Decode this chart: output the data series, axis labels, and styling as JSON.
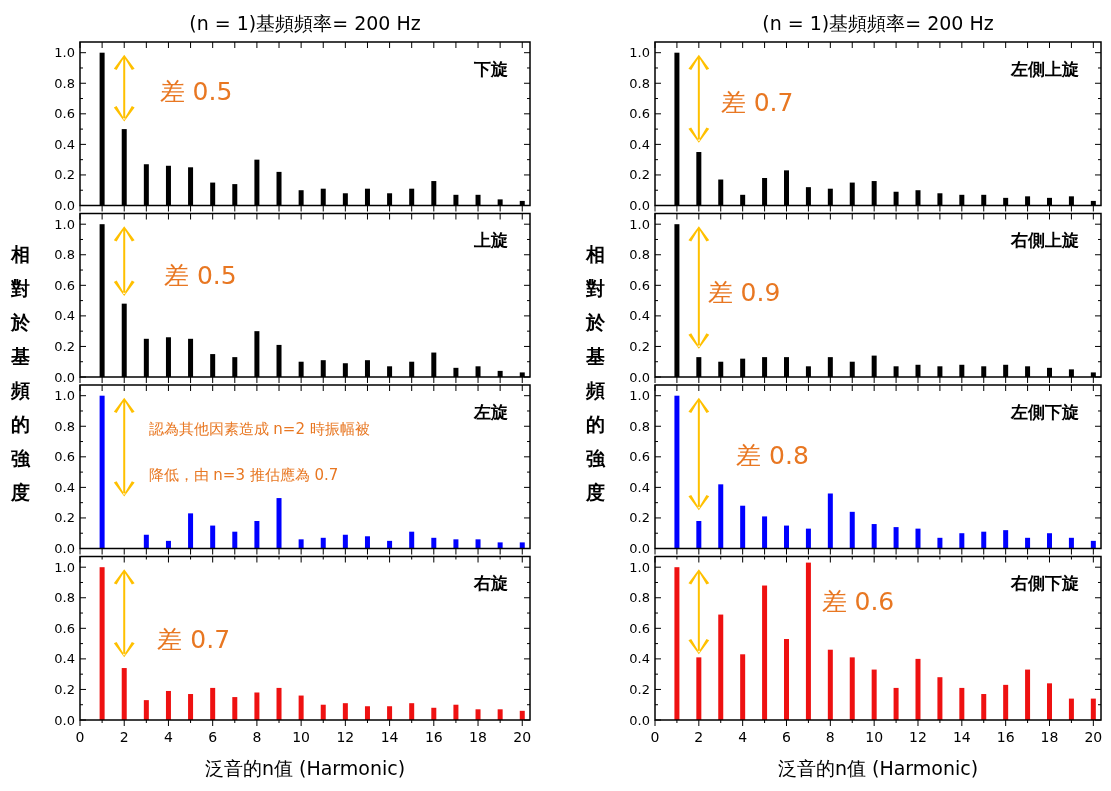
{
  "chart_data": [
    {
      "type": "bar",
      "title": "(n = 1)基頻頻率= 200 Hz",
      "x": [
        1,
        2,
        3,
        4,
        5,
        6,
        7,
        8,
        9,
        10,
        11,
        12,
        13,
        14,
        15,
        16,
        17,
        18,
        19,
        20
      ],
      "values": [
        1.0,
        0.5,
        0.27,
        0.26,
        0.25,
        0.15,
        0.14,
        0.3,
        0.22,
        0.1,
        0.11,
        0.08,
        0.11,
        0.08,
        0.11,
        0.16,
        0.07,
        0.07,
        0.04,
        0.03
      ],
      "color": "#000000",
      "xlim": [
        0,
        20.35
      ],
      "ylim": [
        0,
        1.07
      ],
      "xticks": [
        {
          "value": 0,
          "label": null
        },
        {
          "value": 1,
          "label": null
        },
        {
          "value": 2,
          "label": null
        },
        {
          "value": 3,
          "label": null
        },
        {
          "value": 4,
          "label": null
        },
        {
          "value": 5,
          "label": null
        },
        {
          "value": 6,
          "label": null
        },
        {
          "value": 7,
          "label": null
        },
        {
          "value": 8,
          "label": null
        },
        {
          "value": 9,
          "label": null
        },
        {
          "value": 10,
          "label": null
        },
        {
          "value": 11,
          "label": null
        },
        {
          "value": 12,
          "label": null
        },
        {
          "value": 13,
          "label": null
        },
        {
          "value": 14,
          "label": null
        },
        {
          "value": 15,
          "label": null
        },
        {
          "value": 16,
          "label": null
        },
        {
          "value": 17,
          "label": null
        },
        {
          "value": 18,
          "label": null
        },
        {
          "value": 19,
          "label": null
        },
        {
          "value": 20,
          "label": null
        }
      ],
      "yticks": [
        {
          "value": 0,
          "label": "0.0"
        },
        {
          "value": 0.1,
          "label": null
        },
        {
          "value": 0.2,
          "label": "0.2"
        },
        {
          "value": 0.3,
          "label": null
        },
        {
          "value": 0.4,
          "label": "0.4"
        },
        {
          "value": 0.5,
          "label": null
        },
        {
          "value": 0.6,
          "label": "0.6"
        },
        {
          "value": 0.7,
          "label": null
        },
        {
          "value": 0.8,
          "label": "0.8"
        },
        {
          "value": 0.9,
          "label": null
        },
        {
          "value": 1,
          "label": "1.0"
        }
      ],
      "tick_labels": "y",
      "annotations": [
        "下旋",
        "差 0.5"
      ]
    },
    {
      "type": "bar",
      "title": "(n = 1)基頻頻率= 200 Hz",
      "x": [
        1,
        2,
        3,
        4,
        5,
        6,
        7,
        8,
        9,
        10,
        11,
        12,
        13,
        14,
        15,
        16,
        17,
        18,
        19,
        20
      ],
      "values": [
        1.0,
        0.35,
        0.17,
        0.07,
        0.18,
        0.23,
        0.12,
        0.11,
        0.15,
        0.16,
        0.09,
        0.1,
        0.08,
        0.07,
        0.07,
        0.05,
        0.06,
        0.05,
        0.06,
        0.03
      ],
      "color": "#000000",
      "xlim": [
        0,
        20.35
      ],
      "ylim": [
        0,
        1.07
      ],
      "xticks": [
        {
          "value": 0,
          "label": null
        },
        {
          "value": 1,
          "label": null
        },
        {
          "value": 2,
          "label": null
        },
        {
          "value": 3,
          "label": null
        },
        {
          "value": 4,
          "label": null
        },
        {
          "value": 5,
          "label": null
        },
        {
          "value": 6,
          "label": null
        },
        {
          "value": 7,
          "label": null
        },
        {
          "value": 8,
          "label": null
        },
        {
          "value": 9,
          "label": null
        },
        {
          "value": 10,
          "label": null
        },
        {
          "value": 11,
          "label": null
        },
        {
          "value": 12,
          "label": null
        },
        {
          "value": 13,
          "label": null
        },
        {
          "value": 14,
          "label": null
        },
        {
          "value": 15,
          "label": null
        },
        {
          "value": 16,
          "label": null
        },
        {
          "value": 17,
          "label": null
        },
        {
          "value": 18,
          "label": null
        },
        {
          "value": 19,
          "label": null
        },
        {
          "value": 20,
          "label": null
        }
      ],
      "yticks": [
        {
          "value": 0,
          "label": "0.0"
        },
        {
          "value": 0.1,
          "label": null
        },
        {
          "value": 0.2,
          "label": "0.2"
        },
        {
          "value": 0.3,
          "label": null
        },
        {
          "value": 0.4,
          "label": "0.4"
        },
        {
          "value": 0.5,
          "label": null
        },
        {
          "value": 0.6,
          "label": "0.6"
        },
        {
          "value": 0.7,
          "label": null
        },
        {
          "value": 0.8,
          "label": "0.8"
        },
        {
          "value": 0.9,
          "label": null
        },
        {
          "value": 1,
          "label": "1.0"
        }
      ],
      "tick_labels": "y",
      "annotations": [
        "左側上旋",
        "差 0.7"
      ]
    },
    {
      "type": "bar",
      "ylabel": "相對於基頻的強度",
      "x": [
        1,
        2,
        3,
        4,
        5,
        6,
        7,
        8,
        9,
        10,
        11,
        12,
        13,
        14,
        15,
        16,
        17,
        18,
        19,
        20
      ],
      "values": [
        1.0,
        0.48,
        0.25,
        0.26,
        0.25,
        0.15,
        0.13,
        0.3,
        0.21,
        0.1,
        0.11,
        0.09,
        0.11,
        0.07,
        0.1,
        0.16,
        0.06,
        0.07,
        0.04,
        0.03
      ],
      "color": "#000000",
      "xlim": [
        0,
        20.35
      ],
      "ylim": [
        0,
        1.07
      ],
      "xticks": [
        {
          "value": 0,
          "label": null
        },
        {
          "value": 1,
          "label": null
        },
        {
          "value": 2,
          "label": null
        },
        {
          "value": 3,
          "label": null
        },
        {
          "value": 4,
          "label": null
        },
        {
          "value": 5,
          "label": null
        },
        {
          "value": 6,
          "label": null
        },
        {
          "value": 7,
          "label": null
        },
        {
          "value": 8,
          "label": null
        },
        {
          "value": 9,
          "label": null
        },
        {
          "value": 10,
          "label": null
        },
        {
          "value": 11,
          "label": null
        },
        {
          "value": 12,
          "label": null
        },
        {
          "value": 13,
          "label": null
        },
        {
          "value": 14,
          "label": null
        },
        {
          "value": 15,
          "label": null
        },
        {
          "value": 16,
          "label": null
        },
        {
          "value": 17,
          "label": null
        },
        {
          "value": 18,
          "label": null
        },
        {
          "value": 19,
          "label": null
        },
        {
          "value": 20,
          "label": null
        }
      ],
      "yticks": [
        {
          "value": 0,
          "label": "0.0"
        },
        {
          "value": 0.1,
          "label": null
        },
        {
          "value": 0.2,
          "label": "0.2"
        },
        {
          "value": 0.3,
          "label": null
        },
        {
          "value": 0.4,
          "label": "0.4"
        },
        {
          "value": 0.5,
          "label": null
        },
        {
          "value": 0.6,
          "label": "0.6"
        },
        {
          "value": 0.7,
          "label": null
        },
        {
          "value": 0.8,
          "label": "0.8"
        },
        {
          "value": 0.9,
          "label": null
        },
        {
          "value": 1,
          "label": "1.0"
        }
      ],
      "tick_labels": "y",
      "annotations": [
        "上旋",
        "差 0.5"
      ]
    },
    {
      "type": "bar",
      "ylabel": "相對於基頻的強度",
      "x": [
        1,
        2,
        3,
        4,
        5,
        6,
        7,
        8,
        9,
        10,
        11,
        12,
        13,
        14,
        15,
        16,
        17,
        18,
        19,
        20
      ],
      "values": [
        1.0,
        0.13,
        0.1,
        0.12,
        0.13,
        0.13,
        0.07,
        0.13,
        0.1,
        0.14,
        0.07,
        0.08,
        0.07,
        0.08,
        0.07,
        0.08,
        0.07,
        0.06,
        0.05,
        0.03
      ],
      "color": "#000000",
      "xlim": [
        0,
        20.35
      ],
      "ylim": [
        0,
        1.07
      ],
      "xticks": [
        {
          "value": 0,
          "label": null
        },
        {
          "value": 1,
          "label": null
        },
        {
          "value": 2,
          "label": null
        },
        {
          "value": 3,
          "label": null
        },
        {
          "value": 4,
          "label": null
        },
        {
          "value": 5,
          "label": null
        },
        {
          "value": 6,
          "label": null
        },
        {
          "value": 7,
          "label": null
        },
        {
          "value": 8,
          "label": null
        },
        {
          "value": 9,
          "label": null
        },
        {
          "value": 10,
          "label": null
        },
        {
          "value": 11,
          "label": null
        },
        {
          "value": 12,
          "label": null
        },
        {
          "value": 13,
          "label": null
        },
        {
          "value": 14,
          "label": null
        },
        {
          "value": 15,
          "label": null
        },
        {
          "value": 16,
          "label": null
        },
        {
          "value": 17,
          "label": null
        },
        {
          "value": 18,
          "label": null
        },
        {
          "value": 19,
          "label": null
        },
        {
          "value": 20,
          "label": null
        }
      ],
      "yticks": [
        {
          "value": 0,
          "label": "0.0"
        },
        {
          "value": 0.1,
          "label": null
        },
        {
          "value": 0.2,
          "label": "0.2"
        },
        {
          "value": 0.3,
          "label": null
        },
        {
          "value": 0.4,
          "label": "0.4"
        },
        {
          "value": 0.5,
          "label": null
        },
        {
          "value": 0.6,
          "label": "0.6"
        },
        {
          "value": 0.7,
          "label": null
        },
        {
          "value": 0.8,
          "label": "0.8"
        },
        {
          "value": 0.9,
          "label": null
        },
        {
          "value": 1,
          "label": "1.0"
        }
      ],
      "tick_labels": "y",
      "annotations": [
        "右側上旋",
        "差 0.9"
      ]
    },
    {
      "type": "bar",
      "x": [
        1,
        2,
        3,
        4,
        5,
        6,
        7,
        8,
        9,
        10,
        11,
        12,
        13,
        14,
        15,
        16,
        17,
        18,
        19,
        20
      ],
      "values": [
        1.0,
        0,
        0.09,
        0.05,
        0.23,
        0.15,
        0.11,
        0.18,
        0.33,
        0.06,
        0.07,
        0.09,
        0.08,
        0.05,
        0.11,
        0.07,
        0.06,
        0.06,
        0.04,
        0.04
      ],
      "color": "#0000ff",
      "xlim": [
        0,
        20.35
      ],
      "ylim": [
        0,
        1.07
      ],
      "xticks": [
        {
          "value": 0,
          "label": null
        },
        {
          "value": 1,
          "label": null
        },
        {
          "value": 2,
          "label": null
        },
        {
          "value": 3,
          "label": null
        },
        {
          "value": 4,
          "label": null
        },
        {
          "value": 5,
          "label": null
        },
        {
          "value": 6,
          "label": null
        },
        {
          "value": 7,
          "label": null
        },
        {
          "value": 8,
          "label": null
        },
        {
          "value": 9,
          "label": null
        },
        {
          "value": 10,
          "label": null
        },
        {
          "value": 11,
          "label": null
        },
        {
          "value": 12,
          "label": null
        },
        {
          "value": 13,
          "label": null
        },
        {
          "value": 14,
          "label": null
        },
        {
          "value": 15,
          "label": null
        },
        {
          "value": 16,
          "label": null
        },
        {
          "value": 17,
          "label": null
        },
        {
          "value": 18,
          "label": null
        },
        {
          "value": 19,
          "label": null
        },
        {
          "value": 20,
          "label": null
        }
      ],
      "yticks": [
        {
          "value": 0,
          "label": "0.0"
        },
        {
          "value": 0.1,
          "label": null
        },
        {
          "value": 0.2,
          "label": "0.2"
        },
        {
          "value": 0.3,
          "label": null
        },
        {
          "value": 0.4,
          "label": "0.4"
        },
        {
          "value": 0.5,
          "label": null
        },
        {
          "value": 0.6,
          "label": "0.6"
        },
        {
          "value": 0.7,
          "label": null
        },
        {
          "value": 0.8,
          "label": "0.8"
        },
        {
          "value": 0.9,
          "label": null
        },
        {
          "value": 1,
          "label": "1.0"
        }
      ],
      "tick_labels": "y",
      "annotations": [
        "左旋",
        "認為其他因素造成 n=2 時振幅被降低，由 n=3 推估應為 0.7"
      ]
    },
    {
      "type": "bar",
      "x": [
        1,
        2,
        3,
        4,
        5,
        6,
        7,
        8,
        9,
        10,
        11,
        12,
        13,
        14,
        15,
        16,
        17,
        18,
        19,
        20
      ],
      "values": [
        1.0,
        0.18,
        0.42,
        0.28,
        0.21,
        0.15,
        0.13,
        0.36,
        0.24,
        0.16,
        0.14,
        0.13,
        0.07,
        0.1,
        0.11,
        0.12,
        0.07,
        0.1,
        0.07,
        0.05
      ],
      "color": "#0000ff",
      "xlim": [
        0,
        20.35
      ],
      "ylim": [
        0,
        1.07
      ],
      "xticks": [
        {
          "value": 0,
          "label": null
        },
        {
          "value": 1,
          "label": null
        },
        {
          "value": 2,
          "label": null
        },
        {
          "value": 3,
          "label": null
        },
        {
          "value": 4,
          "label": null
        },
        {
          "value": 5,
          "label": null
        },
        {
          "value": 6,
          "label": null
        },
        {
          "value": 7,
          "label": null
        },
        {
          "value": 8,
          "label": null
        },
        {
          "value": 9,
          "label": null
        },
        {
          "value": 10,
          "label": null
        },
        {
          "value": 11,
          "label": null
        },
        {
          "value": 12,
          "label": null
        },
        {
          "value": 13,
          "label": null
        },
        {
          "value": 14,
          "label": null
        },
        {
          "value": 15,
          "label": null
        },
        {
          "value": 16,
          "label": null
        },
        {
          "value": 17,
          "label": null
        },
        {
          "value": 18,
          "label": null
        },
        {
          "value": 19,
          "label": null
        },
        {
          "value": 20,
          "label": null
        }
      ],
      "yticks": [
        {
          "value": 0,
          "label": "0.0"
        },
        {
          "value": 0.1,
          "label": null
        },
        {
          "value": 0.2,
          "label": "0.2"
        },
        {
          "value": 0.3,
          "label": null
        },
        {
          "value": 0.4,
          "label": "0.4"
        },
        {
          "value": 0.5,
          "label": null
        },
        {
          "value": 0.6,
          "label": "0.6"
        },
        {
          "value": 0.7,
          "label": null
        },
        {
          "value": 0.8,
          "label": "0.8"
        },
        {
          "value": 0.9,
          "label": null
        },
        {
          "value": 1,
          "label": "1.0"
        }
      ],
      "tick_labels": "y",
      "annotations": [
        "左側下旋",
        "差 0.8"
      ]
    },
    {
      "type": "bar",
      "xlabel": "泛音的n值 (Harmonic)",
      "x": [
        1,
        2,
        3,
        4,
        5,
        6,
        7,
        8,
        9,
        10,
        11,
        12,
        13,
        14,
        15,
        16,
        17,
        18,
        19,
        20
      ],
      "values": [
        1.0,
        0.34,
        0.13,
        0.19,
        0.17,
        0.21,
        0.15,
        0.18,
        0.21,
        0.16,
        0.1,
        0.11,
        0.09,
        0.09,
        0.11,
        0.08,
        0.1,
        0.07,
        0.07,
        0.06
      ],
      "color": "#ee1111",
      "xlim": [
        0,
        20.35
      ],
      "ylim": [
        0,
        1.07
      ],
      "xticks": [
        0,
        {
          "value": 1,
          "label": null
        },
        2,
        {
          "value": 3,
          "label": null
        },
        4,
        {
          "value": 5,
          "label": null
        },
        6,
        {
          "value": 7,
          "label": null
        },
        8,
        {
          "value": 9,
          "label": null
        },
        10,
        {
          "value": 11,
          "label": null
        },
        12,
        {
          "value": 13,
          "label": null
        },
        14,
        {
          "value": 15,
          "label": null
        },
        16,
        {
          "value": 17,
          "label": null
        },
        18,
        {
          "value": 19,
          "label": null
        },
        20
      ],
      "yticks": [
        {
          "value": 0,
          "label": "0.0"
        },
        {
          "value": 0.1,
          "label": null
        },
        {
          "value": 0.2,
          "label": "0.2"
        },
        {
          "value": 0.3,
          "label": null
        },
        {
          "value": 0.4,
          "label": "0.4"
        },
        {
          "value": 0.5,
          "label": null
        },
        {
          "value": 0.6,
          "label": "0.6"
        },
        {
          "value": 0.7,
          "label": null
        },
        {
          "value": 0.8,
          "label": "0.8"
        },
        {
          "value": 0.9,
          "label": null
        },
        {
          "value": 1,
          "label": "1.0"
        }
      ],
      "annotations": [
        "右旋",
        "差 0.7"
      ]
    },
    {
      "type": "bar",
      "xlabel": "泛音的n值 (Harmonic)",
      "x": [
        1,
        2,
        3,
        4,
        5,
        6,
        7,
        8,
        9,
        10,
        11,
        12,
        13,
        14,
        15,
        16,
        17,
        18,
        19,
        20
      ],
      "values": [
        1.0,
        0.41,
        0.69,
        0.43,
        0.88,
        0.53,
        1.03,
        0.46,
        0.41,
        0.33,
        0.21,
        0.4,
        0.28,
        0.21,
        0.17,
        0.23,
        0.33,
        0.24,
        0.14,
        0.14
      ],
      "color": "#ee1111",
      "xlim": [
        0,
        20.35
      ],
      "ylim": [
        0,
        1.07
      ],
      "xticks": [
        0,
        {
          "value": 1,
          "label": null
        },
        2,
        {
          "value": 3,
          "label": null
        },
        4,
        {
          "value": 5,
          "label": null
        },
        6,
        {
          "value": 7,
          "label": null
        },
        8,
        {
          "value": 9,
          "label": null
        },
        10,
        {
          "value": 11,
          "label": null
        },
        12,
        {
          "value": 13,
          "label": null
        },
        14,
        {
          "value": 15,
          "label": null
        },
        16,
        {
          "value": 17,
          "label": null
        },
        18,
        {
          "value": 19,
          "label": null
        },
        20
      ],
      "yticks": [
        {
          "value": 0,
          "label": "0.0"
        },
        {
          "value": 0.1,
          "label": null
        },
        {
          "value": 0.2,
          "label": "0.2"
        },
        {
          "value": 0.3,
          "label": null
        },
        {
          "value": 0.4,
          "label": "0.4"
        },
        {
          "value": 0.5,
          "label": null
        },
        {
          "value": 0.6,
          "label": "0.6"
        },
        {
          "value": 0.7,
          "label": null
        },
        {
          "value": 0.8,
          "label": "0.8"
        },
        {
          "value": 0.9,
          "label": null
        },
        {
          "value": 1,
          "label": "1.0"
        }
      ],
      "annotations": [
        "右側下旋",
        "差 0.6"
      ]
    }
  ]
}
